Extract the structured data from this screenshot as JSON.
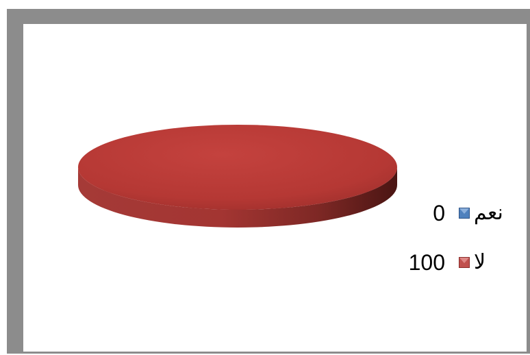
{
  "chart_data": {
    "type": "pie",
    "title": "",
    "legend_position": "right",
    "categories": [
      "نعم",
      "لا"
    ],
    "values": [
      0,
      100
    ],
    "colors": [
      "#4f81bd",
      "#c0504d"
    ],
    "labels": [
      "0",
      "100"
    ]
  },
  "legend": {
    "items": [
      {
        "label": "نعم",
        "value": "0",
        "color": "#4f81bd"
      },
      {
        "label": "لا",
        "value": "100",
        "color": "#c0504d"
      }
    ]
  }
}
